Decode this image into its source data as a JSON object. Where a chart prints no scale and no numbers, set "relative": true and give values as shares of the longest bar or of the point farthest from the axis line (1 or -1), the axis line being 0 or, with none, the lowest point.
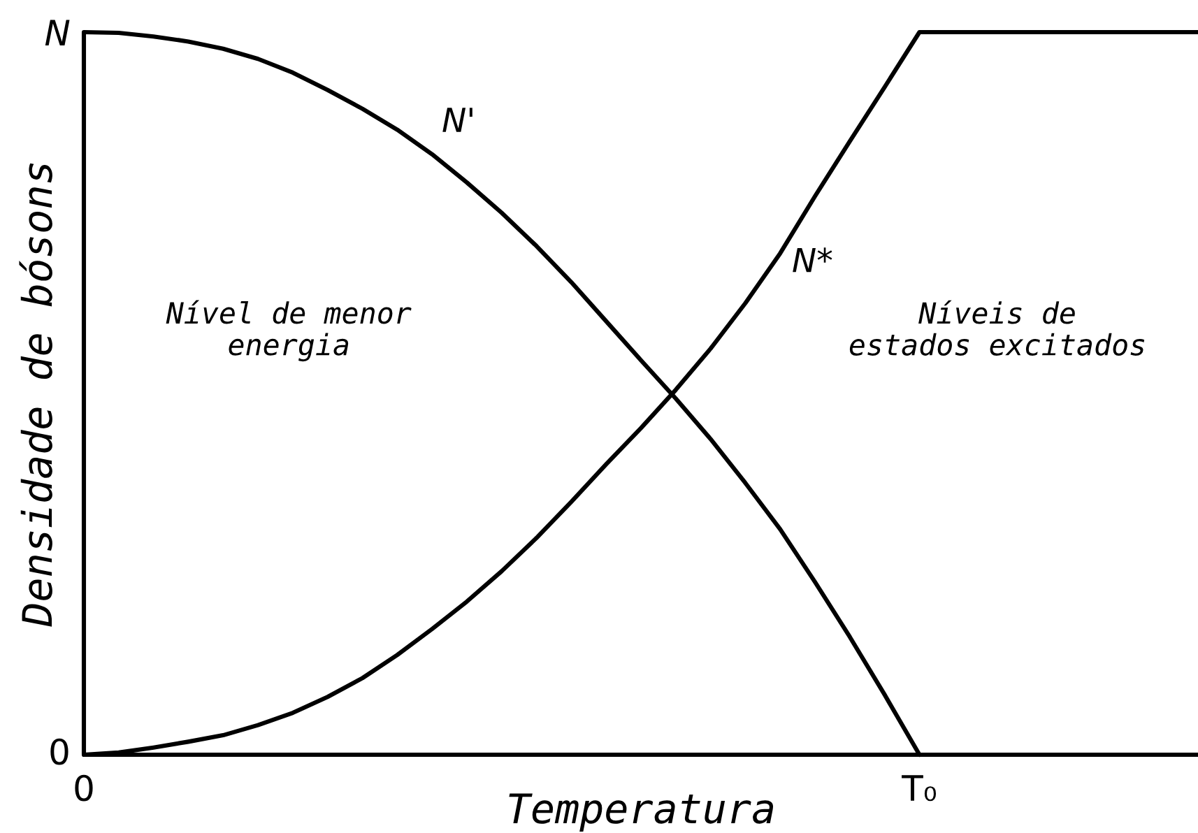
{
  "chart_data": {
    "type": "line",
    "relative": true,
    "xlabel": "Temperatura",
    "ylabel": "Densidade de bósons",
    "categories": [
      "0",
      null,
      null,
      null,
      null,
      null,
      null,
      null,
      null,
      null,
      null,
      null,
      null,
      null,
      null,
      null,
      null,
      null,
      null,
      null,
      null,
      null,
      null,
      null,
      "T₀",
      null,
      null,
      null,
      null,
      null,
      null,
      null,
      null
    ],
    "annotations": [
      "Nível de menor\nenergia",
      "Níveis de\nestados excitados",
      "N",
      "0"
    ],
    "series": [
      {
        "name": "N'",
        "color": "#000000",
        "values": [
          1,
          0.999,
          0.994,
          0.987,
          0.977,
          0.963,
          0.944,
          0.92,
          0.894,
          0.865,
          0.831,
          0.792,
          0.75,
          0.704,
          0.654,
          0.6,
          0.546,
          0.493,
          0.437,
          0.376,
          0.312,
          0.239,
          0.163,
          0.083,
          0,
          null,
          null,
          null,
          null,
          null,
          null,
          null,
          null
        ]
      },
      {
        "name": "N*",
        "color": "#000000",
        "values": [
          0,
          0.003,
          0.01,
          0.018,
          0.027,
          0.041,
          0.058,
          0.08,
          0.106,
          0.138,
          0.174,
          0.212,
          0.254,
          0.3,
          0.35,
          0.402,
          0.452,
          0.505,
          0.562,
          0.625,
          0.694,
          0.773,
          0.849,
          0.924,
          1,
          1,
          1,
          1,
          1,
          1,
          1,
          1,
          1
        ]
      }
    ]
  }
}
